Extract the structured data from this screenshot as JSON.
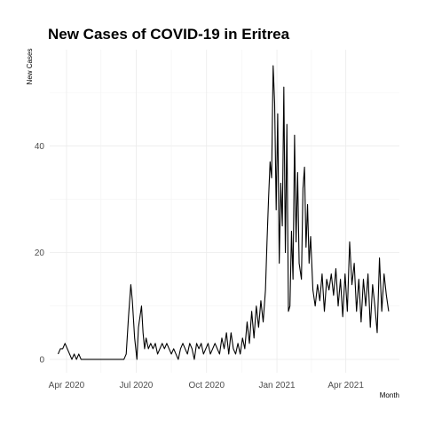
{
  "chart_data": {
    "type": "line",
    "title": "New Cases of COVID-19 in Eritrea",
    "xlabel": "Month",
    "ylabel": "New Cases",
    "grid": true,
    "x_ticks": [
      {
        "date": "2020-04-01",
        "label": "Apr 2020"
      },
      {
        "date": "2020-07-01",
        "label": "Jul 2020"
      },
      {
        "date": "2020-10-01",
        "label": "Oct 2020"
      },
      {
        "date": "2021-01-01",
        "label": "Jan 2021"
      },
      {
        "date": "2021-04-01",
        "label": "Apr 2021"
      }
    ],
    "y_ticks": [
      0,
      20,
      40
    ],
    "xlim": [
      "2020-03-10",
      "2021-06-10"
    ],
    "ylim": [
      -2.5,
      58
    ],
    "series": [
      {
        "color": "#000000",
        "points": [
          [
            "2020-03-21",
            1
          ],
          [
            "2020-03-24",
            2
          ],
          [
            "2020-03-27",
            2
          ],
          [
            "2020-03-30",
            3
          ],
          [
            "2020-04-02",
            2
          ],
          [
            "2020-04-05",
            1
          ],
          [
            "2020-04-08",
            0
          ],
          [
            "2020-04-11",
            1
          ],
          [
            "2020-04-14",
            0
          ],
          [
            "2020-04-17",
            1
          ],
          [
            "2020-04-20",
            0
          ],
          [
            "2020-04-25",
            0
          ],
          [
            "2020-05-05",
            0
          ],
          [
            "2020-05-20",
            0
          ],
          [
            "2020-06-05",
            0
          ],
          [
            "2020-06-15",
            0
          ],
          [
            "2020-06-18",
            1
          ],
          [
            "2020-06-21",
            8
          ],
          [
            "2020-06-24",
            14
          ],
          [
            "2020-06-26",
            11
          ],
          [
            "2020-06-29",
            4
          ],
          [
            "2020-07-02",
            0
          ],
          [
            "2020-07-04",
            6
          ],
          [
            "2020-07-06",
            8
          ],
          [
            "2020-07-08",
            10
          ],
          [
            "2020-07-10",
            5
          ],
          [
            "2020-07-12",
            2
          ],
          [
            "2020-07-14",
            4
          ],
          [
            "2020-07-17",
            2
          ],
          [
            "2020-07-20",
            3
          ],
          [
            "2020-07-23",
            2
          ],
          [
            "2020-07-26",
            3
          ],
          [
            "2020-07-29",
            1
          ],
          [
            "2020-08-01",
            2
          ],
          [
            "2020-08-04",
            3
          ],
          [
            "2020-08-07",
            2
          ],
          [
            "2020-08-10",
            3
          ],
          [
            "2020-08-13",
            2
          ],
          [
            "2020-08-16",
            1
          ],
          [
            "2020-08-19",
            2
          ],
          [
            "2020-08-22",
            1
          ],
          [
            "2020-08-25",
            0
          ],
          [
            "2020-08-28",
            2
          ],
          [
            "2020-08-31",
            3
          ],
          [
            "2020-09-03",
            2
          ],
          [
            "2020-09-06",
            1
          ],
          [
            "2020-09-09",
            3
          ],
          [
            "2020-09-12",
            2
          ],
          [
            "2020-09-15",
            0
          ],
          [
            "2020-09-18",
            3
          ],
          [
            "2020-09-21",
            2
          ],
          [
            "2020-09-24",
            3
          ],
          [
            "2020-09-27",
            1
          ],
          [
            "2020-09-30",
            2
          ],
          [
            "2020-10-03",
            3
          ],
          [
            "2020-10-06",
            1
          ],
          [
            "2020-10-09",
            2
          ],
          [
            "2020-10-12",
            3
          ],
          [
            "2020-10-15",
            2
          ],
          [
            "2020-10-18",
            1
          ],
          [
            "2020-10-21",
            4
          ],
          [
            "2020-10-24",
            2
          ],
          [
            "2020-10-27",
            5
          ],
          [
            "2020-10-30",
            1
          ],
          [
            "2020-11-02",
            5
          ],
          [
            "2020-11-05",
            2
          ],
          [
            "2020-11-08",
            1
          ],
          [
            "2020-11-11",
            3
          ],
          [
            "2020-11-14",
            1
          ],
          [
            "2020-11-17",
            4
          ],
          [
            "2020-11-20",
            2
          ],
          [
            "2020-11-23",
            7
          ],
          [
            "2020-11-26",
            3
          ],
          [
            "2020-11-29",
            9
          ],
          [
            "2020-12-02",
            4
          ],
          [
            "2020-12-05",
            10
          ],
          [
            "2020-12-08",
            6
          ],
          [
            "2020-12-11",
            11
          ],
          [
            "2020-12-14",
            7
          ],
          [
            "2020-12-17",
            13
          ],
          [
            "2020-12-19",
            22
          ],
          [
            "2020-12-21",
            30
          ],
          [
            "2020-12-23",
            37
          ],
          [
            "2020-12-25",
            34
          ],
          [
            "2020-12-27",
            55
          ],
          [
            "2020-12-29",
            48
          ],
          [
            "2020-12-31",
            28
          ],
          [
            "2021-01-02",
            46
          ],
          [
            "2021-01-04",
            18
          ],
          [
            "2021-01-06",
            33
          ],
          [
            "2021-01-08",
            25
          ],
          [
            "2021-01-10",
            51
          ],
          [
            "2021-01-12",
            20
          ],
          [
            "2021-01-14",
            44
          ],
          [
            "2021-01-16",
            9
          ],
          [
            "2021-01-18",
            10
          ],
          [
            "2021-01-20",
            24
          ],
          [
            "2021-01-22",
            15
          ],
          [
            "2021-01-24",
            42
          ],
          [
            "2021-01-26",
            22
          ],
          [
            "2021-01-28",
            35
          ],
          [
            "2021-01-30",
            18
          ],
          [
            "2021-02-02",
            15
          ],
          [
            "2021-02-04",
            32
          ],
          [
            "2021-02-06",
            36
          ],
          [
            "2021-02-08",
            21
          ],
          [
            "2021-02-10",
            29
          ],
          [
            "2021-02-12",
            18
          ],
          [
            "2021-02-14",
            23
          ],
          [
            "2021-02-17",
            13
          ],
          [
            "2021-02-20",
            10
          ],
          [
            "2021-02-23",
            14
          ],
          [
            "2021-02-26",
            11
          ],
          [
            "2021-03-01",
            16
          ],
          [
            "2021-03-04",
            9
          ],
          [
            "2021-03-07",
            15
          ],
          [
            "2021-03-10",
            13
          ],
          [
            "2021-03-13",
            16
          ],
          [
            "2021-03-16",
            12
          ],
          [
            "2021-03-19",
            17
          ],
          [
            "2021-03-22",
            10
          ],
          [
            "2021-03-25",
            15
          ],
          [
            "2021-03-28",
            8
          ],
          [
            "2021-03-31",
            16
          ],
          [
            "2021-04-03",
            9
          ],
          [
            "2021-04-06",
            22
          ],
          [
            "2021-04-09",
            14
          ],
          [
            "2021-04-12",
            18
          ],
          [
            "2021-04-15",
            9
          ],
          [
            "2021-04-18",
            15
          ],
          [
            "2021-04-21",
            7
          ],
          [
            "2021-04-24",
            15
          ],
          [
            "2021-04-27",
            10
          ],
          [
            "2021-04-30",
            16
          ],
          [
            "2021-05-03",
            6
          ],
          [
            "2021-05-06",
            14
          ],
          [
            "2021-05-09",
            10
          ],
          [
            "2021-05-12",
            5
          ],
          [
            "2021-05-15",
            19
          ],
          [
            "2021-05-18",
            9
          ],
          [
            "2021-05-21",
            16
          ],
          [
            "2021-05-24",
            12
          ],
          [
            "2021-05-27",
            9
          ]
        ]
      }
    ]
  }
}
